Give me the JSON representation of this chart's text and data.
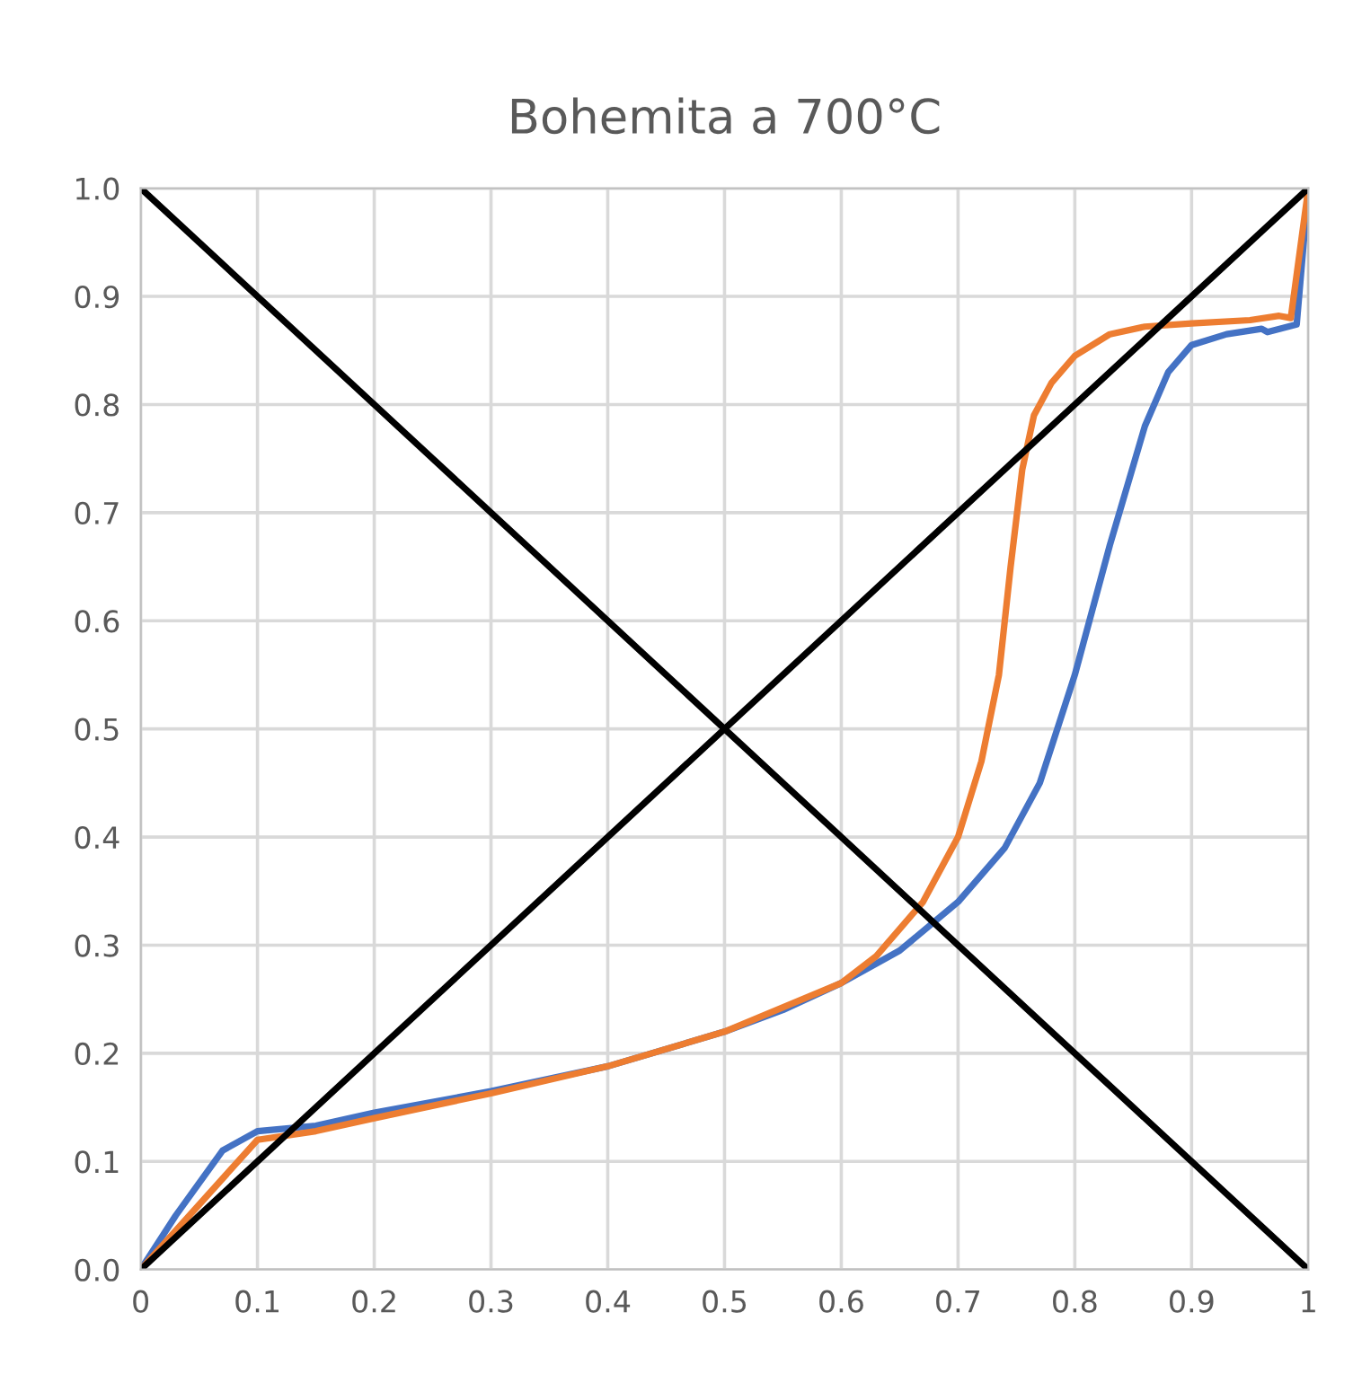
{
  "chart_data": {
    "type": "line",
    "title": "Bohemita a 700°C",
    "xlim": [
      0,
      1
    ],
    "ylim": [
      0,
      1
    ],
    "xticks": [
      0,
      0.1,
      0.2,
      0.3,
      0.4,
      0.5,
      0.6,
      0.7,
      0.8,
      0.9,
      1
    ],
    "yticks": [
      {
        "value": 0,
        "label": "0.0"
      },
      {
        "value": 0.1,
        "label": "0.1"
      },
      {
        "value": 0.2,
        "label": "0.2"
      },
      {
        "value": 0.3,
        "label": "0.3"
      },
      {
        "value": 0.4,
        "label": "0.4"
      },
      {
        "value": 0.5,
        "label": "0.5"
      },
      {
        "value": 0.6,
        "label": "0.6"
      },
      {
        "value": 0.7,
        "label": "0.7"
      },
      {
        "value": 0.8,
        "label": "0.8"
      },
      {
        "value": 0.9,
        "label": "0.9"
      },
      {
        "value": 1,
        "label": "1.0"
      }
    ],
    "grid": true,
    "marker": "none",
    "line_style": "solid",
    "series": [
      {
        "color": "#4472c4",
        "x": [
          0,
          0.03,
          0.07,
          0.1,
          0.15,
          0.2,
          0.3,
          0.4,
          0.5,
          0.55,
          0.6,
          0.65,
          0.7,
          0.74,
          0.77,
          0.8,
          0.83,
          0.86,
          0.88,
          0.9,
          0.93,
          0.96,
          0.965,
          0.99,
          1.0
        ],
        "values": [
          0,
          0.05,
          0.11,
          0.128,
          0.133,
          0.145,
          0.165,
          0.188,
          0.22,
          0.24,
          0.265,
          0.295,
          0.34,
          0.39,
          0.45,
          0.55,
          0.67,
          0.78,
          0.83,
          0.855,
          0.865,
          0.87,
          0.867,
          0.874,
          1.0
        ]
      },
      {
        "color": "#ed7d31",
        "x": [
          0,
          0.05,
          0.1,
          0.15,
          0.2,
          0.3,
          0.4,
          0.5,
          0.6,
          0.63,
          0.67,
          0.7,
          0.72,
          0.735,
          0.745,
          0.755,
          0.765,
          0.78,
          0.8,
          0.83,
          0.86,
          0.9,
          0.95,
          0.975,
          0.985,
          1.0
        ],
        "values": [
          0,
          0.06,
          0.12,
          0.128,
          0.14,
          0.163,
          0.188,
          0.22,
          0.265,
          0.29,
          0.34,
          0.4,
          0.47,
          0.55,
          0.65,
          0.74,
          0.79,
          0.82,
          0.845,
          0.865,
          0.872,
          0.875,
          0.878,
          0.882,
          0.88,
          1.0
        ]
      },
      {
        "color": "#000000",
        "x": [
          0,
          1
        ],
        "values": [
          0,
          1
        ]
      },
      {
        "color": "#000000",
        "x": [
          0,
          1
        ],
        "values": [
          1,
          0
        ]
      }
    ]
  }
}
